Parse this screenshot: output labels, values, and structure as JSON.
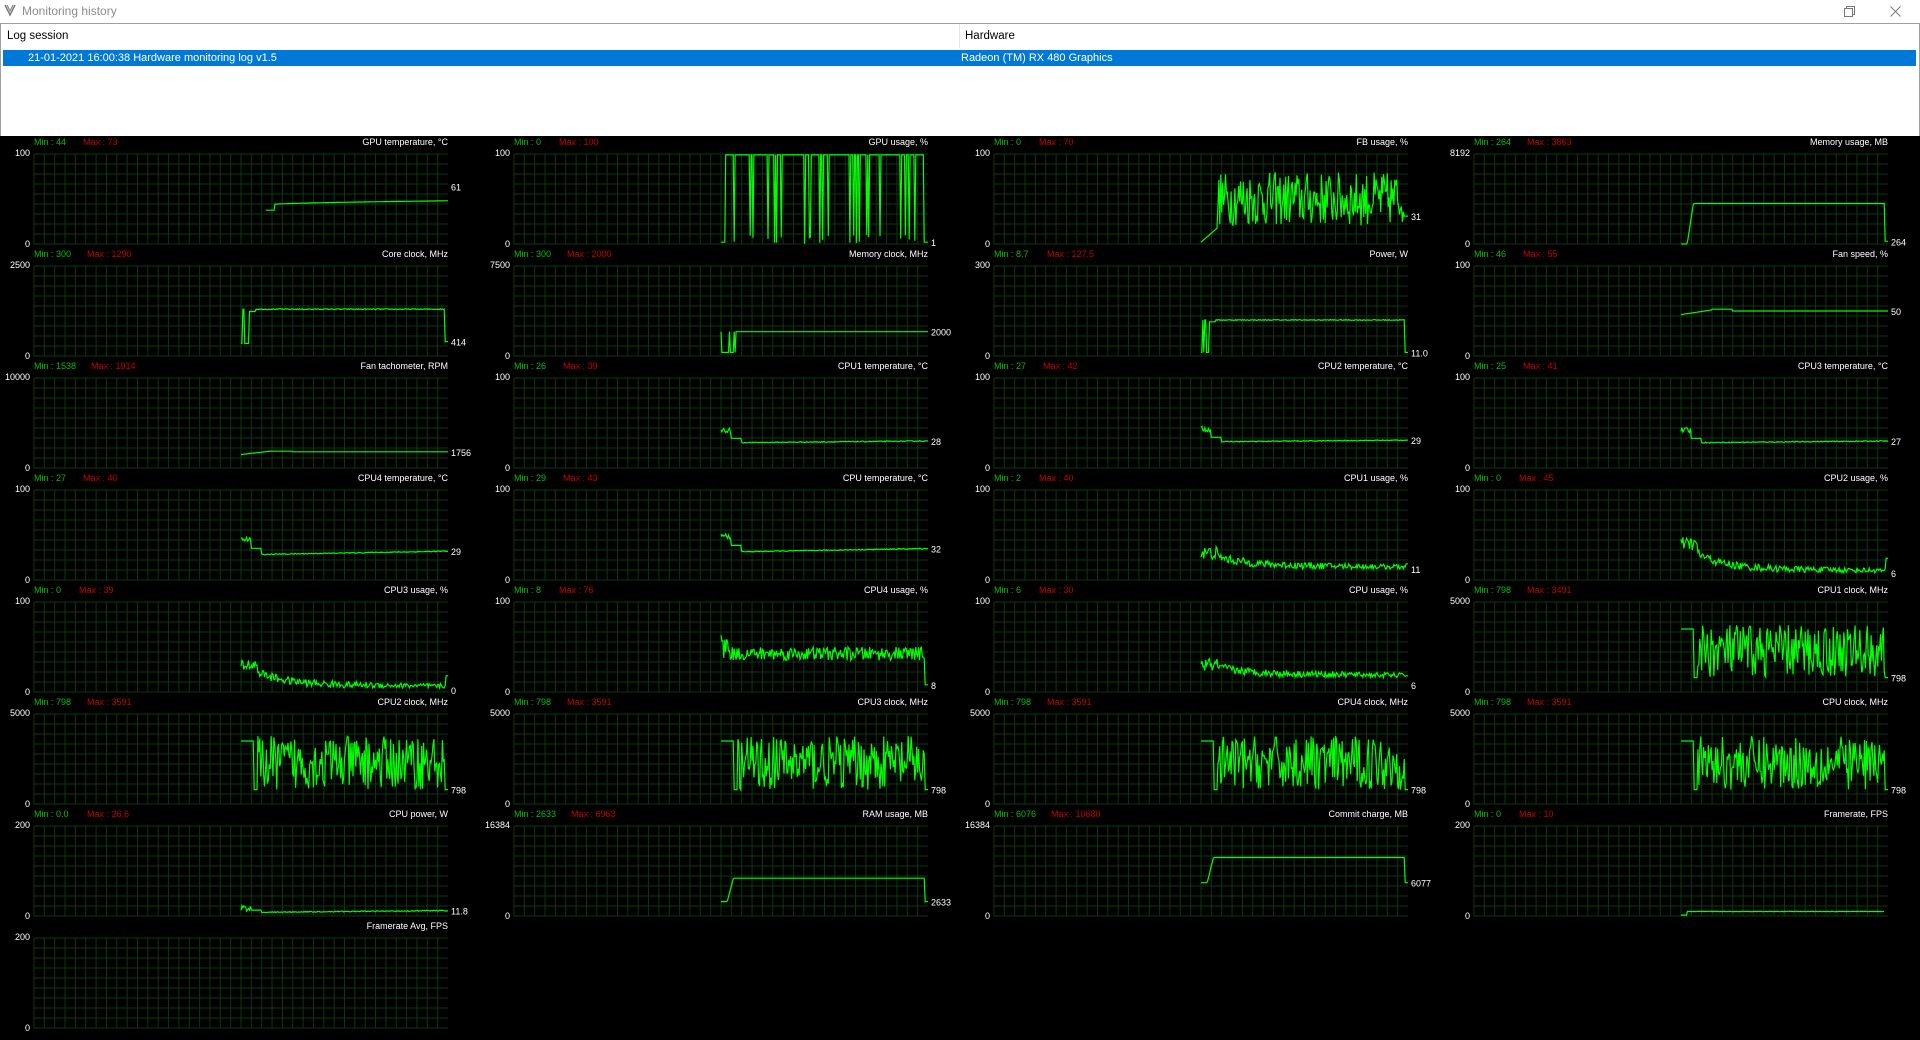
{
  "window": {
    "title": "Monitoring history"
  },
  "sessions": {
    "columns": [
      "Log session",
      "Hardware"
    ],
    "rows": [
      {
        "session": "21-01-2021 16:00:38 Hardware monitoring log v1.5",
        "hardware": "Radeon (TM) RX 480 Graphics"
      }
    ]
  },
  "colors": {
    "graph_background": "#000000",
    "grid": "#0a3a0a",
    "trace": "#00ff00",
    "min_text": "#00c000",
    "max_text": "#c00000",
    "text": "#ffffff"
  },
  "graphs": [
    {
      "title": "GPU temperature, °C",
      "min": "44",
      "max": "73",
      "ymax": "100",
      "ymin": "0",
      "current": "61",
      "shape": "rise",
      "start": 0.56,
      "end": 1.0,
      "level": 0.48,
      "base": 0.4,
      "cur_y": 0.64
    },
    {
      "title": "GPU usage, %",
      "min": "0",
      "max": "100",
      "ymax": "100",
      "ymin": "0",
      "current": "1",
      "shape": "spiky_full",
      "start": 0.5,
      "end": 1.0,
      "level": 0.99,
      "base": 0.0,
      "cur_y": 0.02
    },
    {
      "title": "FB usage, %",
      "min": "0",
      "max": "70",
      "ymax": "100",
      "ymin": "0",
      "current": "31",
      "shape": "noisy",
      "start": 0.5,
      "end": 1.0,
      "level": 0.6,
      "base": 0.0,
      "cur_y": 0.31
    },
    {
      "title": "Memory usage, MB",
      "min": "264",
      "max": "3863",
      "ymax": "8192",
      "ymin": "0",
      "current": "264",
      "shape": "plateau",
      "start": 0.5,
      "end": 1.0,
      "level": 0.45,
      "base": 0.0,
      "cur_y": 0.03
    },
    {
      "title": "Core clock, MHz",
      "min": "300",
      "max": "1290",
      "ymax": "2500",
      "ymin": "0",
      "current": "414",
      "shape": "plateau_drop",
      "start": 0.5,
      "end": 1.0,
      "level": 0.52,
      "base": 0.14,
      "cur_y": 0.16
    },
    {
      "title": "Memory clock, MHz",
      "min": "300",
      "max": "2000",
      "ymax": "7500",
      "ymin": "0",
      "current": "2000",
      "shape": "flat_jitter",
      "start": 0.5,
      "end": 1.0,
      "level": 0.27,
      "base": 0.04,
      "cur_y": 0.27
    },
    {
      "title": "Power, W",
      "min": "8.7",
      "max": "127.5",
      "ymax": "300",
      "ymin": "0",
      "current": "11.0",
      "shape": "plateau_drop",
      "start": 0.5,
      "end": 1.0,
      "level": 0.4,
      "base": 0.04,
      "cur_y": 0.04
    },
    {
      "title": "Fan speed, %",
      "min": "46",
      "max": "55",
      "ymax": "100",
      "ymin": "0",
      "current": "50",
      "shape": "bump",
      "start": 0.5,
      "end": 1.0,
      "level": 0.5,
      "base": 0.46,
      "cur_y": 0.5
    },
    {
      "title": "Fan tachometer, RPM",
      "min": "1538",
      "max": "1914",
      "ymax": "10000",
      "ymin": "0",
      "current": "1756",
      "shape": "bump",
      "start": 0.5,
      "end": 1.0,
      "level": 0.18,
      "base": 0.15,
      "cur_y": 0.18
    },
    {
      "title": "CPU1 temperature, °C",
      "min": "26",
      "max": "39",
      "ymax": "100",
      "ymin": "0",
      "current": "28",
      "shape": "start_bump",
      "start": 0.5,
      "end": 1.0,
      "level": 0.3,
      "base": 0.28,
      "cur_y": 0.3
    },
    {
      "title": "CPU2 temperature, °C",
      "min": "27",
      "max": "42",
      "ymax": "100",
      "ymin": "0",
      "current": "29",
      "shape": "start_bump",
      "start": 0.5,
      "end": 1.0,
      "level": 0.31,
      "base": 0.29,
      "cur_y": 0.31
    },
    {
      "title": "CPU3 temperature, °C",
      "min": "25",
      "max": "41",
      "ymax": "100",
      "ymin": "0",
      "current": "27",
      "shape": "start_bump",
      "start": 0.5,
      "end": 1.0,
      "level": 0.3,
      "base": 0.28,
      "cur_y": 0.3
    },
    {
      "title": "CPU4 temperature, °C",
      "min": "27",
      "max": "40",
      "ymax": "100",
      "ymin": "0",
      "current": "29",
      "shape": "start_bump",
      "start": 0.5,
      "end": 1.0,
      "level": 0.32,
      "base": 0.28,
      "cur_y": 0.32
    },
    {
      "title": "CPU temperature, °C",
      "min": "29",
      "max": "43",
      "ymax": "100",
      "ymin": "0",
      "current": "32",
      "shape": "start_bump",
      "start": 0.5,
      "end": 1.0,
      "level": 0.35,
      "base": 0.31,
      "cur_y": 0.35
    },
    {
      "title": "CPU1 usage, %",
      "min": "2",
      "max": "40",
      "ymax": "100",
      "ymin": "0",
      "current": "11",
      "shape": "decay_noise",
      "start": 0.5,
      "end": 1.0,
      "level": 0.3,
      "base": 0.12,
      "cur_y": 0.12
    },
    {
      "title": "CPU2 usage, %",
      "min": "0",
      "max": "45",
      "ymax": "100",
      "ymin": "0",
      "current": "6",
      "shape": "decay_noise",
      "start": 0.5,
      "end": 1.0,
      "level": 0.4,
      "base": 0.08,
      "cur_y": 0.08
    },
    {
      "title": "CPU3 usage, %",
      "min": "0",
      "max": "39",
      "ymax": "100",
      "ymin": "0",
      "current": "0",
      "shape": "decay_noise",
      "start": 0.5,
      "end": 1.0,
      "level": 0.3,
      "base": 0.04,
      "cur_y": 0.02
    },
    {
      "title": "CPU4 usage, %",
      "min": "8",
      "max": "76",
      "ymax": "100",
      "ymin": "0",
      "current": "8",
      "shape": "high_noise",
      "start": 0.5,
      "end": 1.0,
      "level": 0.5,
      "base": 0.08,
      "cur_y": 0.08
    },
    {
      "title": "CPU usage, %",
      "min": "6",
      "max": "30",
      "ymax": "100",
      "ymin": "0",
      "current": "6",
      "shape": "decay_noise",
      "start": 0.5,
      "end": 1.0,
      "level": 0.3,
      "base": 0.16,
      "cur_y": 0.08
    },
    {
      "title": "CPU1 clock, MHz",
      "min": "798",
      "max": "3491",
      "ymax": "5000",
      "ymin": "0",
      "current": "798",
      "shape": "clock_noise",
      "start": 0.5,
      "end": 1.0,
      "level": 0.7,
      "base": 0.16,
      "cur_y": 0.16
    },
    {
      "title": "CPU2 clock, MHz",
      "min": "798",
      "max": "3591",
      "ymax": "5000",
      "ymin": "0",
      "current": "798",
      "shape": "clock_noise",
      "start": 0.5,
      "end": 1.0,
      "level": 0.7,
      "base": 0.16,
      "cur_y": 0.16
    },
    {
      "title": "CPU3 clock, MHz",
      "min": "798",
      "max": "3591",
      "ymax": "5000",
      "ymin": "0",
      "current": "798",
      "shape": "clock_noise",
      "start": 0.5,
      "end": 1.0,
      "level": 0.7,
      "base": 0.16,
      "cur_y": 0.16
    },
    {
      "title": "CPU4 clock, MHz",
      "min": "798",
      "max": "3591",
      "ymax": "5000",
      "ymin": "0",
      "current": "798",
      "shape": "clock_noise",
      "start": 0.5,
      "end": 1.0,
      "level": 0.7,
      "base": 0.16,
      "cur_y": 0.16
    },
    {
      "title": "CPU clock, MHz",
      "min": "798",
      "max": "3591",
      "ymax": "5000",
      "ymin": "0",
      "current": "798",
      "shape": "clock_noise",
      "start": 0.5,
      "end": 1.0,
      "level": 0.7,
      "base": 0.16,
      "cur_y": 0.16
    },
    {
      "title": "CPU power, W",
      "min": "0.0",
      "max": "26.6",
      "ymax": "200",
      "ymin": "0",
      "current": "11.8",
      "shape": "start_bump",
      "start": 0.5,
      "end": 1.0,
      "level": 0.06,
      "base": 0.04,
      "cur_y": 0.06
    },
    {
      "title": "RAM usage, MB",
      "min": "2633",
      "max": "6963",
      "ymax": "16384",
      "ymin": "0",
      "current": "2633",
      "shape": "plateau",
      "start": 0.5,
      "end": 1.0,
      "level": 0.42,
      "base": 0.16,
      "cur_y": 0.16
    },
    {
      "title": "Commit charge, MB",
      "min": "6076",
      "max": "10680",
      "ymax": "16384",
      "ymin": "0",
      "current": "6077",
      "shape": "plateau",
      "start": 0.5,
      "end": 1.0,
      "level": 0.65,
      "base": 0.37,
      "cur_y": 0.37
    },
    {
      "title": "Framerate, FPS",
      "min": "0",
      "max": "10",
      "ymax": "200",
      "ymin": "0",
      "current": "",
      "shape": "low_flat",
      "start": 0.5,
      "end": 0.99,
      "level": 0.05,
      "base": 0.01,
      "cur_y": 0.05
    },
    {
      "title": "Framerate Avg, FPS",
      "min": "",
      "max": "",
      "ymax": "200",
      "ymin": "0",
      "current": "",
      "shape": "none",
      "start": 0.5,
      "end": 1.0,
      "level": 0.0,
      "base": 0.0,
      "cur_y": 0.0
    }
  ]
}
